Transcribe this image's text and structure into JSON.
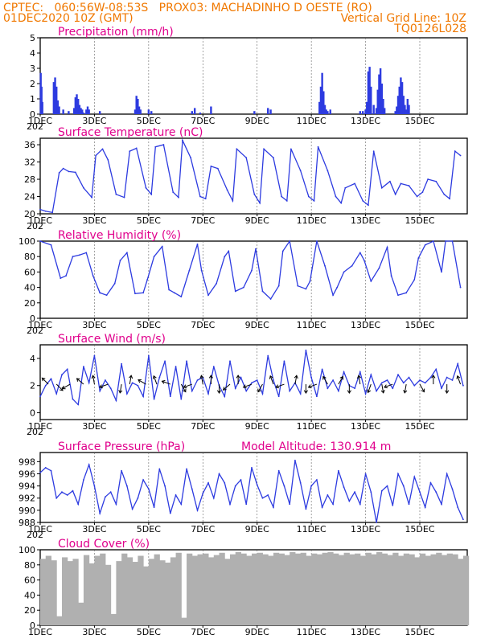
{
  "header": {
    "left_line1": "CPTEC:",
    "coords": "060:56W-08:53S",
    "station": "PROX03: MACHADINHO D OESTE (RO)",
    "run": "01DEC2020 10Z (GMT)",
    "grid_note": "Vertical Grid Line: 10Z",
    "code": "TQ0126L028"
  },
  "x_ticks": [
    "1DEC",
    "3DEC",
    "5DEC",
    "7DEC",
    "9DEC",
    "11DEC",
    "13DEC",
    "15DEC"
  ],
  "year_stub": "202",
  "model_altitude": "Model Altitude: 130.914 m",
  "colors": {
    "line": "#2d3be0",
    "bar": "#2d3be0",
    "cloud": "#b0b0b0",
    "title": "#e0008c",
    "header": "#f07800"
  },
  "chart_data": [
    {
      "type": "bar",
      "title": "Precipitation (mm/h)",
      "ylim": [
        0,
        5
      ],
      "yticks": [
        "0",
        "1",
        "2",
        "3",
        "4",
        "5"
      ],
      "x_days": [
        0.02,
        0.05,
        0.08,
        0.5,
        0.55,
        0.6,
        0.65,
        0.7,
        0.85,
        1.05,
        1.25,
        1.3,
        1.35,
        1.4,
        1.45,
        1.5,
        1.55,
        1.6,
        1.7,
        1.75,
        1.8,
        2.2,
        3.5,
        3.55,
        3.6,
        3.65,
        3.7,
        4.0,
        4.1,
        5.6,
        5.7,
        5.9,
        6.3,
        7.9,
        8.4,
        8.5,
        10.3,
        10.35,
        10.4,
        10.45,
        10.5,
        10.55,
        10.6,
        10.7,
        11.8,
        11.9,
        12.0,
        12.05,
        12.1,
        12.15,
        12.2,
        12.3,
        12.4,
        12.45,
        12.5,
        12.55,
        12.6,
        12.65,
        12.7,
        13.1,
        13.15,
        13.2,
        13.25,
        13.3,
        13.35,
        13.4,
        13.45,
        13.5,
        13.55,
        13.6
      ],
      "values": [
        2.7,
        1.8,
        0.8,
        2.1,
        2.4,
        1.8,
        0.9,
        0.5,
        0.3,
        0.2,
        0.4,
        1.1,
        1.3,
        1.0,
        0.6,
        0.4,
        0.3,
        0.1,
        0.3,
        0.5,
        0.3,
        0.2,
        0.3,
        1.2,
        1.0,
        0.5,
        0.3,
        0.3,
        0.2,
        0.2,
        0.4,
        0.1,
        0.5,
        0.2,
        0.4,
        0.3,
        0.8,
        1.8,
        2.7,
        1.5,
        0.6,
        0.3,
        0.2,
        0.3,
        0.2,
        0.2,
        0.3,
        0.8,
        2.8,
        3.1,
        1.8,
        0.6,
        0.4,
        1.6,
        2.6,
        3.0,
        2.0,
        1.0,
        0.4,
        0.2,
        0.5,
        1.2,
        1.8,
        2.4,
        2.1,
        1.2,
        0.6,
        0.3,
        1.0,
        0.6
      ]
    },
    {
      "type": "line",
      "title": "Surface Temperature (nC)",
      "ylim": [
        20,
        37.5
      ],
      "yticks": [
        "20",
        "24",
        "28",
        "32",
        "36"
      ],
      "x_days": [
        0.0,
        0.2,
        0.45,
        0.7,
        0.85,
        1.05,
        1.3,
        1.6,
        1.9,
        2.05,
        2.3,
        2.5,
        2.8,
        3.1,
        3.3,
        3.55,
        3.9,
        4.1,
        4.25,
        4.55,
        4.9,
        5.1,
        5.25,
        5.55,
        5.9,
        6.1,
        6.3,
        6.55,
        6.9,
        7.1,
        7.25,
        7.6,
        7.9,
        8.1,
        8.25,
        8.6,
        8.9,
        9.1,
        9.25,
        9.6,
        9.9,
        10.1,
        10.25,
        10.6,
        10.9,
        11.1,
        11.25,
        11.6,
        11.9,
        12.1,
        12.3,
        12.6,
        12.9,
        13.1,
        13.3,
        13.6,
        13.9,
        14.1,
        14.3,
        14.6,
        14.9,
        15.1,
        15.3,
        15.5
      ],
      "values": [
        21.0,
        20.6,
        20.3,
        29.5,
        30.5,
        29.8,
        29.6,
        26.0,
        23.8,
        33.5,
        35.0,
        32.5,
        24.5,
        23.8,
        34.5,
        35.2,
        26.0,
        24.5,
        35.5,
        36.0,
        25.0,
        23.8,
        37.0,
        33.0,
        24.0,
        23.5,
        31.0,
        30.5,
        25.5,
        23.0,
        35.0,
        33.0,
        24.5,
        22.5,
        35.0,
        33.0,
        24.0,
        23.0,
        35.0,
        30.0,
        24.0,
        23.0,
        35.5,
        30.0,
        24.0,
        22.5,
        26.0,
        27.0,
        23.0,
        22.0,
        34.5,
        26.0,
        27.5,
        24.5,
        27.0,
        26.5,
        24.0,
        25.0,
        28.0,
        27.5,
        24.5,
        23.5,
        34.5,
        33.5
      ]
    },
    {
      "type": "line",
      "title": "Relative Humidity (%)",
      "ylim": [
        0,
        100
      ],
      "yticks": [
        "0",
        "20",
        "40",
        "60",
        "80",
        "100"
      ],
      "x_days": [
        0.0,
        0.4,
        0.75,
        0.95,
        1.2,
        1.45,
        1.7,
        1.95,
        2.2,
        2.45,
        2.75,
        2.95,
        3.2,
        3.5,
        3.8,
        3.95,
        4.2,
        4.5,
        4.75,
        4.95,
        5.2,
        5.5,
        5.8,
        5.95,
        6.2,
        6.5,
        6.8,
        6.95,
        7.2,
        7.5,
        7.8,
        7.95,
        8.2,
        8.5,
        8.8,
        8.95,
        9.2,
        9.5,
        9.8,
        9.95,
        10.2,
        10.5,
        10.8,
        10.95,
        11.2,
        11.5,
        11.8,
        11.95,
        12.2,
        12.5,
        12.8,
        12.95,
        13.2,
        13.5,
        13.8,
        13.95,
        14.2,
        14.5,
        14.8,
        14.95,
        15.2,
        15.5
      ],
      "values": [
        100,
        95,
        52,
        55,
        80,
        82,
        85,
        55,
        33,
        30,
        45,
        75,
        85,
        32,
        33,
        50,
        80,
        93,
        37,
        33,
        28,
        62,
        96,
        62,
        30,
        45,
        80,
        87,
        35,
        40,
        62,
        90,
        35,
        25,
        42,
        87,
        100,
        42,
        38,
        48,
        100,
        68,
        30,
        40,
        60,
        68,
        85,
        75,
        48,
        65,
        92,
        55,
        30,
        33,
        50,
        78,
        95,
        100,
        60,
        100,
        100,
        40
      ]
    },
    {
      "type": "line",
      "title": "Surface Wind (m/s)",
      "ylim": [
        -0.5,
        5
      ],
      "yticks": [
        "0",
        "2",
        "4"
      ],
      "x_days": [
        0.0,
        0.2,
        0.4,
        0.6,
        0.8,
        1.0,
        1.2,
        1.4,
        1.6,
        1.8,
        2.0,
        2.2,
        2.4,
        2.6,
        2.8,
        3.0,
        3.2,
        3.4,
        3.6,
        3.8,
        4.0,
        4.2,
        4.4,
        4.6,
        4.8,
        5.0,
        5.2,
        5.4,
        5.6,
        5.8,
        6.0,
        6.2,
        6.4,
        6.6,
        6.8,
        7.0,
        7.2,
        7.4,
        7.6,
        7.8,
        8.0,
        8.2,
        8.4,
        8.6,
        8.8,
        9.0,
        9.2,
        9.4,
        9.6,
        9.8,
        10.0,
        10.2,
        10.4,
        10.6,
        10.8,
        11.0,
        11.2,
        11.4,
        11.6,
        11.8,
        12.0,
        12.2,
        12.4,
        12.6,
        12.8,
        13.0,
        13.2,
        13.4,
        13.6,
        13.8,
        14.0,
        14.2,
        14.4,
        14.6,
        14.8,
        15.0,
        15.2,
        15.4,
        15.6
      ],
      "values": [
        1.2,
        2.0,
        2.5,
        1.4,
        2.8,
        3.2,
        1.0,
        0.6,
        3.4,
        2.2,
        4.2,
        1.6,
        2.4,
        1.8,
        0.9,
        3.6,
        1.4,
        2.2,
        2.0,
        1.2,
        4.2,
        1.0,
        2.6,
        3.8,
        1.2,
        3.4,
        1.0,
        3.8,
        1.6,
        2.4,
        2.6,
        1.4,
        3.4,
        2.0,
        1.2,
        3.8,
        1.8,
        2.6,
        1.6,
        2.2,
        2.4,
        1.4,
        4.2,
        2.4,
        1.2,
        3.8,
        1.6,
        2.2,
        1.4,
        4.6,
        2.6,
        1.2,
        3.2,
        1.8,
        2.4,
        1.6,
        3.0,
        2.0,
        1.8,
        3.0,
        1.4,
        2.8,
        1.6,
        2.2,
        2.4,
        1.8,
        2.8,
        2.2,
        2.6,
        2.0,
        2.4,
        2.2,
        2.6,
        3.2,
        1.8,
        2.6,
        2.4,
        3.6,
        2.0
      ],
      "arrows_day": [
        0.3,
        0.6,
        1.1,
        1.6,
        2.0,
        2.5,
        3.0,
        3.3,
        3.9,
        4.3,
        4.8,
        5.2,
        5.6,
        6.0,
        6.3,
        6.6,
        7.0,
        7.3,
        7.8,
        8.2,
        8.6,
        9.0,
        9.4,
        9.8,
        10.2,
        10.6,
        11.0,
        11.4,
        11.8,
        12.2,
        12.6,
        13.0,
        13.5,
        14.0,
        14.5,
        15.0,
        15.5
      ],
      "arrows_dir_deg": [
        135,
        315,
        210,
        140,
        100,
        200,
        260,
        80,
        150,
        110,
        160,
        300,
        200,
        100,
        90,
        270,
        220,
        90,
        200,
        240,
        110,
        200,
        80,
        270,
        200,
        120,
        60,
        270,
        100,
        250,
        280,
        200,
        260,
        300,
        90,
        270,
        110
      ]
    },
    {
      "type": "line",
      "title": "Surface Pressure (hPa)",
      "ylim": [
        988,
        999.5
      ],
      "yticks": [
        "988",
        "990",
        "992",
        "994",
        "996",
        "998"
      ],
      "x_days": [
        0.0,
        0.2,
        0.4,
        0.6,
        0.8,
        1.0,
        1.2,
        1.4,
        1.6,
        1.8,
        2.0,
        2.2,
        2.4,
        2.6,
        2.8,
        3.0,
        3.2,
        3.4,
        3.6,
        3.8,
        4.0,
        4.2,
        4.4,
        4.6,
        4.8,
        5.0,
        5.2,
        5.4,
        5.6,
        5.8,
        6.0,
        6.2,
        6.4,
        6.6,
        6.8,
        7.0,
        7.2,
        7.4,
        7.6,
        7.8,
        8.0,
        8.2,
        8.4,
        8.6,
        8.8,
        9.0,
        9.2,
        9.4,
        9.6,
        9.8,
        10.0,
        10.2,
        10.4,
        10.6,
        10.8,
        11.0,
        11.2,
        11.4,
        11.6,
        11.8,
        12.0,
        12.2,
        12.4,
        12.6,
        12.8,
        13.0,
        13.2,
        13.4,
        13.6,
        13.8,
        14.0,
        14.2,
        14.4,
        14.6,
        14.8,
        15.0,
        15.2,
        15.4,
        15.6
      ],
      "values": [
        996.2,
        997.0,
        996.5,
        992.0,
        993.0,
        992.5,
        993.2,
        991.0,
        995.0,
        997.5,
        994.0,
        989.5,
        992.2,
        993.0,
        991.0,
        996.5,
        994.0,
        990.2,
        992.0,
        995.0,
        993.5,
        990.5,
        996.8,
        994.0,
        989.5,
        992.5,
        991.0,
        996.8,
        993.5,
        990.0,
        992.8,
        994.5,
        992.0,
        996.0,
        994.5,
        991.0,
        994.0,
        995.0,
        991.0,
        997.0,
        994.2,
        992.0,
        992.5,
        990.5,
        996.5,
        994.0,
        991.0,
        998.2,
        994.5,
        990.2,
        994.0,
        995.0,
        990.5,
        992.5,
        991.0,
        996.5,
        993.8,
        991.5,
        993.0,
        991.0,
        996.0,
        993.0,
        988.0,
        993.2,
        994.0,
        990.8,
        996.0,
        994.0,
        991.0,
        995.5,
        993.0,
        990.5,
        994.5,
        993.0,
        991.0,
        996.0,
        993.5,
        990.5,
        988.5
      ]
    },
    {
      "type": "bar",
      "title": "Cloud Cover (%)",
      "ylim": [
        0,
        100
      ],
      "yticks": [
        "0",
        "20",
        "40",
        "60",
        "80",
        "100"
      ],
      "x_days": [
        0.0,
        0.2,
        0.4,
        0.6,
        0.8,
        1.0,
        1.2,
        1.4,
        1.6,
        1.8,
        2.0,
        2.2,
        2.4,
        2.6,
        2.8,
        3.0,
        3.2,
        3.4,
        3.6,
        3.8,
        4.0,
        4.2,
        4.4,
        4.6,
        4.8,
        5.0,
        5.2,
        5.4,
        5.6,
        5.8,
        6.0,
        6.2,
        6.4,
        6.6,
        6.8,
        7.0,
        7.2,
        7.4,
        7.6,
        7.8,
        8.0,
        8.2,
        8.4,
        8.6,
        8.8,
        9.0,
        9.2,
        9.4,
        9.6,
        9.8,
        10.0,
        10.2,
        10.4,
        10.6,
        10.8,
        11.0,
        11.2,
        11.4,
        11.6,
        11.8,
        12.0,
        12.2,
        12.4,
        12.6,
        12.8,
        13.0,
        13.2,
        13.4,
        13.6,
        13.8,
        14.0,
        14.2,
        14.4,
        14.6,
        14.8,
        15.0,
        15.2,
        15.4,
        15.6
      ],
      "values": [
        88,
        92,
        86,
        12,
        90,
        85,
        88,
        30,
        93,
        82,
        92,
        95,
        80,
        15,
        85,
        95,
        90,
        84,
        92,
        78,
        88,
        94,
        86,
        83,
        90,
        96,
        10,
        95,
        92,
        94,
        95,
        90,
        93,
        96,
        88,
        94,
        97,
        95,
        92,
        95,
        96,
        94,
        92,
        96,
        95,
        93,
        97,
        95,
        96,
        92,
        95,
        94,
        96,
        97,
        95,
        93,
        96,
        94,
        95,
        92,
        96,
        94,
        97,
        95,
        93,
        96,
        92,
        95,
        94,
        90,
        95,
        92,
        94,
        96,
        93,
        95,
        94,
        88,
        92
      ]
    }
  ]
}
